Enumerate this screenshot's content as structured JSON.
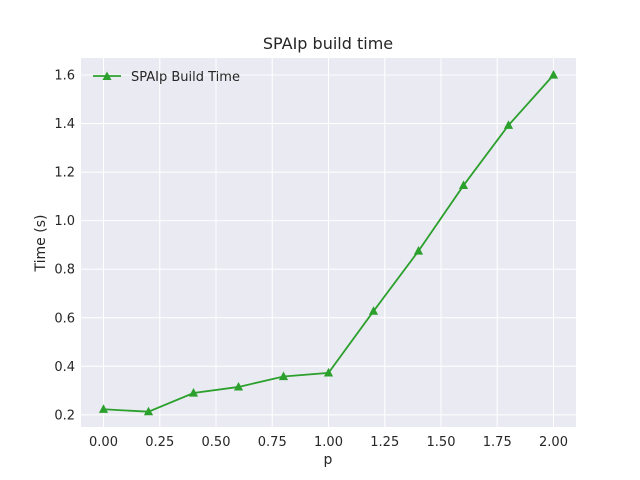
{
  "chart_data": {
    "type": "line",
    "title": "SPAIp build time",
    "xlabel": "p",
    "ylabel": "Time (s)",
    "xlim": [
      -0.1,
      2.1
    ],
    "ylim": [
      0.15,
      1.67
    ],
    "xticks": [
      0.0,
      0.25,
      0.5,
      0.75,
      1.0,
      1.25,
      1.5,
      1.75,
      2.0
    ],
    "xtick_labels": [
      "0.00",
      "0.25",
      "0.50",
      "0.75",
      "1.00",
      "1.25",
      "1.50",
      "1.75",
      "2.00"
    ],
    "yticks": [
      0.2,
      0.4,
      0.6,
      0.8,
      1.0,
      1.2,
      1.4,
      1.6
    ],
    "ytick_labels": [
      "0.2",
      "0.4",
      "0.6",
      "0.8",
      "1.0",
      "1.2",
      "1.4",
      "1.6"
    ],
    "grid": true,
    "legend_position": "top-left",
    "background_color": "#eaeaf2",
    "series": [
      {
        "name": "SPAIp Build Time",
        "color": "#2ca02c",
        "marker": "triangle-up",
        "x": [
          0.0,
          0.2,
          0.4,
          0.6,
          0.8,
          1.0,
          1.2,
          1.4,
          1.6,
          1.8,
          2.0
        ],
        "y": [
          0.223,
          0.213,
          0.29,
          0.315,
          0.358,
          0.373,
          0.627,
          0.875,
          1.145,
          1.393,
          1.6
        ]
      }
    ]
  }
}
